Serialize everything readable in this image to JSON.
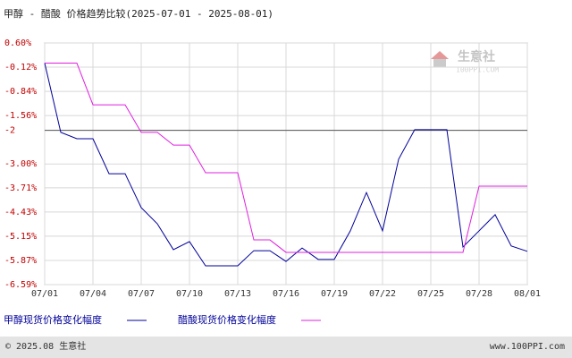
{
  "chart_data": {
    "type": "line",
    "title": "甲醇 - 醋酸 价格趋势比较(2025-07-01 - 2025-08-01)",
    "categories": [
      "07/01",
      null,
      null,
      "07/04",
      null,
      null,
      "07/07",
      null,
      null,
      "07/10",
      null,
      null,
      "07/13",
      null,
      null,
      "07/16",
      null,
      null,
      "07/19",
      null,
      null,
      "07/22",
      null,
      null,
      "07/25",
      null,
      null,
      "07/28",
      null,
      null,
      "08/01"
    ],
    "series": [
      {
        "name": "甲醇现货价格变化幅度",
        "color": "#000099",
        "values": [
          0,
          -2.06,
          -2.25,
          -2.25,
          -3.29,
          -3.29,
          -4.3,
          -4.78,
          -5.55,
          -5.31,
          -6.03,
          -6.03,
          -6.03,
          -5.58,
          -5.58,
          -5.9,
          -5.5,
          -5.84,
          -5.84,
          -4.99,
          -3.85,
          -4.99,
          -2.86,
          -1.98,
          -1.98,
          -1.98,
          -5.47,
          -4.99,
          -4.51,
          -5.44,
          -5.6
        ]
      },
      {
        "name": "醋酸现货价格变化幅度",
        "color": "#e020e0",
        "values": [
          0,
          0,
          0,
          -1.24,
          -1.24,
          -1.24,
          -2.06,
          -2.06,
          -2.44,
          -2.44,
          -3.26,
          -3.26,
          -3.26,
          -5.26,
          -5.26,
          -5.63,
          -5.63,
          -5.63,
          -5.63,
          -5.63,
          -5.63,
          -5.63,
          -5.63,
          -5.63,
          -5.63,
          -5.63,
          -5.63,
          -3.66,
          -3.66,
          -3.66,
          -3.66
        ]
      }
    ],
    "ylim": [
      -6.59,
      0.6
    ],
    "yticks": [
      {
        "value": 0.6,
        "label": "0.60%"
      },
      {
        "value": -0.12,
        "label": "-0.12%"
      },
      {
        "value": -0.84,
        "label": "-0.84%"
      },
      {
        "value": -1.56,
        "label": "-1.56%"
      },
      -2,
      {
        "value": -3.0,
        "label": "-3.00%"
      },
      {
        "value": -3.71,
        "label": "-3.71%"
      },
      {
        "value": -4.43,
        "label": "-4.43%"
      },
      {
        "value": -5.15,
        "label": "-5.15%"
      },
      {
        "value": -5.87,
        "label": "-5.87%"
      },
      {
        "value": -6.59,
        "label": "-6.59%"
      }
    ],
    "baseline": -2,
    "grid": true,
    "watermark": {
      "name": "生意社",
      "url": "100PPI.COM"
    },
    "footer": {
      "left": "© 2025.08 生意社",
      "right": "www.100PPI.com"
    }
  }
}
